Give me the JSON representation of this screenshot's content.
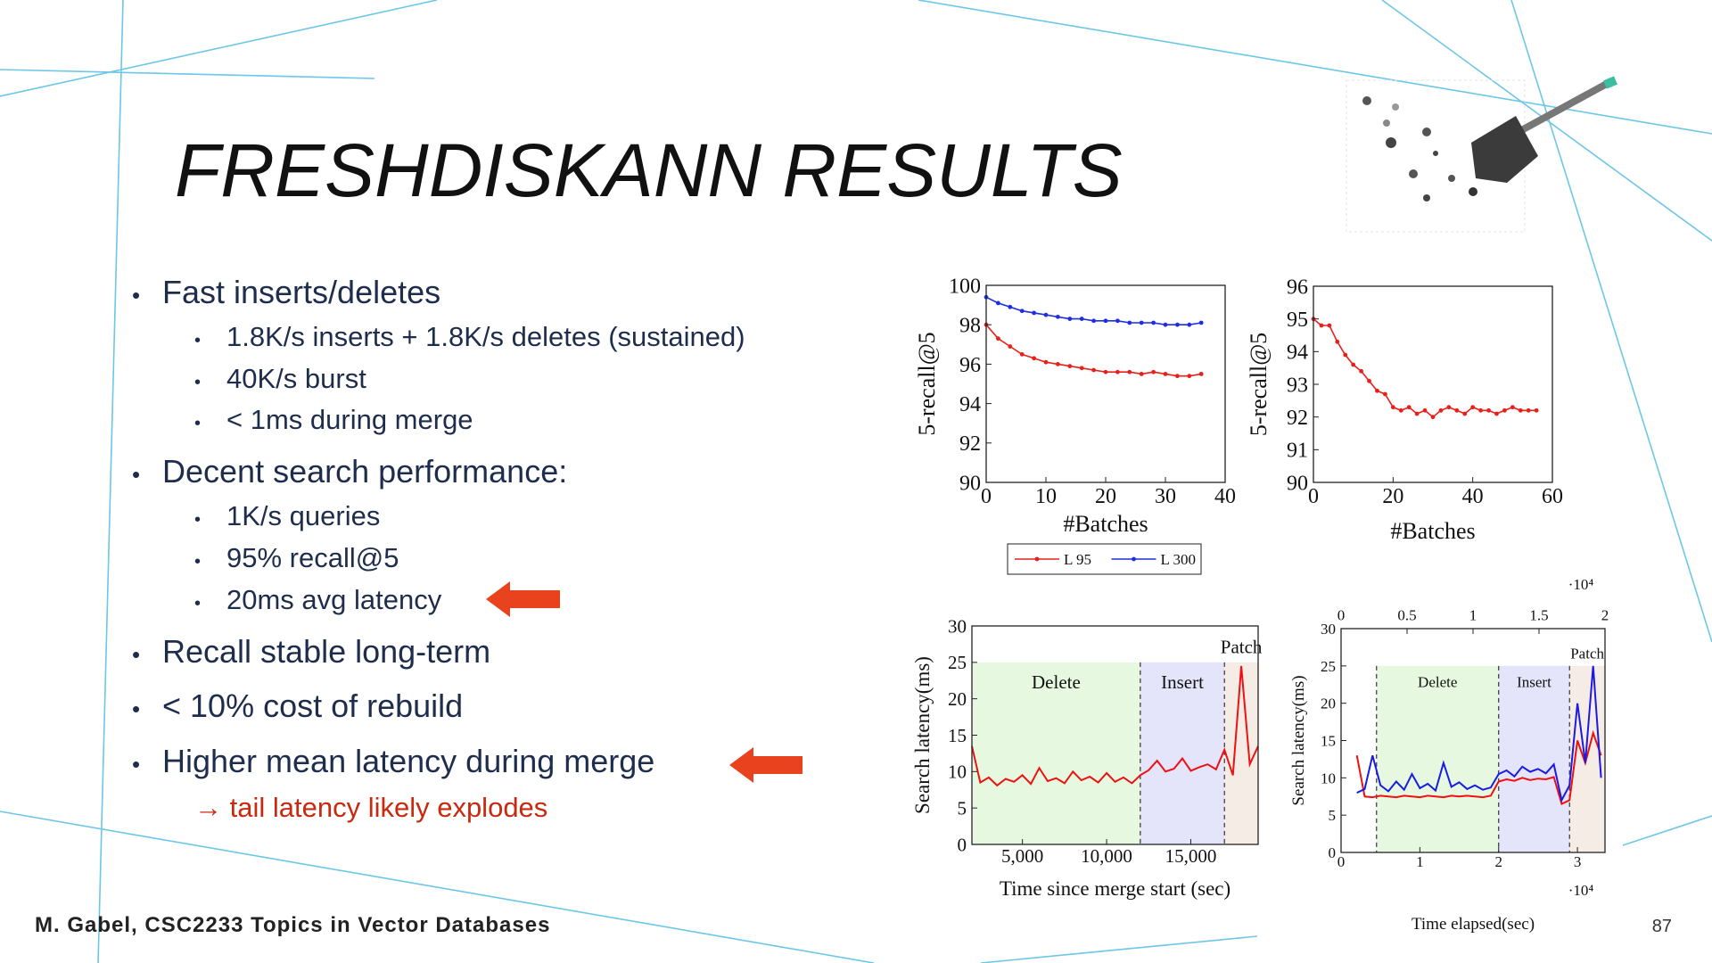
{
  "title": "FRESHDISKANN RESULTS",
  "bullets": [
    {
      "text": "Fast inserts/deletes",
      "sub": [
        "1.8K/s inserts + 1.8K/s deletes (sustained)",
        "40K/s burst",
        "< 1ms during merge"
      ]
    },
    {
      "text": "Decent search performance:",
      "sub": [
        "1K/s queries",
        "95% recall@5",
        "20ms avg latency"
      ]
    },
    {
      "text": "Recall stable long-term"
    },
    {
      "text": "< 10% cost of rebuild"
    },
    {
      "text": "Higher mean latency during merge",
      "note": "→ tail latency likely explodes"
    }
  ],
  "footer": "M. Gabel, CSC2233 Topics in Vector Databases",
  "page_number": "87",
  "chart_data": [
    {
      "type": "line",
      "x_label": "#Batches",
      "y_label": "5-recall@5",
      "markers": true,
      "legend": "below",
      "xlim": [
        0,
        40
      ],
      "xticks": [
        0,
        10,
        20,
        30,
        40
      ],
      "ylim": [
        90,
        100
      ],
      "yticks": [
        90,
        92,
        94,
        96,
        98,
        100
      ],
      "x": [
        0,
        2,
        4,
        6,
        8,
        10,
        12,
        14,
        16,
        18,
        20,
        22,
        24,
        26,
        28,
        30,
        32,
        34,
        36
      ],
      "series": [
        {
          "name": "L 95",
          "color": "#e8201a",
          "values": [
            98.0,
            97.3,
            96.9,
            96.5,
            96.3,
            96.1,
            96.0,
            95.9,
            95.8,
            95.7,
            95.6,
            95.6,
            95.6,
            95.5,
            95.6,
            95.5,
            95.4,
            95.4,
            95.5
          ]
        },
        {
          "name": "L 300",
          "color": "#1f2ee0",
          "values": [
            99.4,
            99.1,
            98.9,
            98.7,
            98.6,
            98.5,
            98.4,
            98.3,
            98.3,
            98.2,
            98.2,
            98.2,
            98.1,
            98.1,
            98.1,
            98.0,
            98.0,
            98.0,
            98.1
          ]
        }
      ]
    },
    {
      "type": "line",
      "x_label": "#Batches",
      "y_label": "5-recall@5",
      "markers": true,
      "xlim": [
        0,
        60
      ],
      "xticks": [
        0,
        20,
        40,
        60
      ],
      "ylim": [
        90,
        96
      ],
      "yticks": [
        90,
        91,
        92,
        93,
        94,
        95,
        96
      ],
      "x": [
        0,
        2,
        4,
        6,
        8,
        10,
        12,
        14,
        16,
        18,
        20,
        22,
        24,
        26,
        28,
        30,
        32,
        34,
        36,
        38,
        40,
        42,
        44,
        46,
        48,
        50,
        52,
        54,
        56
      ],
      "series": [
        {
          "color": "#e8201a",
          "values": [
            95.0,
            94.8,
            94.8,
            94.3,
            93.9,
            93.6,
            93.4,
            93.1,
            92.8,
            92.7,
            92.3,
            92.2,
            92.3,
            92.1,
            92.2,
            92.0,
            92.2,
            92.3,
            92.2,
            92.1,
            92.3,
            92.2,
            92.2,
            92.1,
            92.2,
            92.3,
            92.2,
            92.2,
            92.2
          ]
        }
      ]
    },
    {
      "type": "line",
      "x_label": "Time since merge start (sec)",
      "y_label": "Search latency(ms)",
      "markers": false,
      "xlim": [
        2000,
        19000
      ],
      "xticks": [
        {
          "value": 5000,
          "label": "5,000"
        },
        {
          "value": 10000,
          "label": "10,000"
        },
        {
          "value": 15000,
          "label": "15,000"
        }
      ],
      "ylim": [
        0,
        30
      ],
      "yticks": [
        0,
        5,
        10,
        15,
        20,
        25,
        30
      ],
      "region_top": 25,
      "regions": [
        {
          "label": "Delete",
          "start": 2000,
          "end": 12000,
          "color": "#e6f9e0"
        },
        {
          "label": "Insert",
          "start": 12000,
          "end": 17000,
          "color": "#e4e4fb"
        },
        {
          "label": "Patch",
          "start": 17000,
          "end": 19000,
          "color": "#f6ece6"
        }
      ],
      "x": [
        2000,
        2500,
        3000,
        3500,
        4000,
        4500,
        5000,
        5500,
        6000,
        6500,
        7000,
        7500,
        8000,
        8500,
        9000,
        9500,
        10000,
        10500,
        11000,
        11500,
        12000,
        12500,
        13000,
        13500,
        14000,
        14500,
        15000,
        15500,
        16000,
        16500,
        17000,
        17500,
        18000,
        18500,
        19000
      ],
      "series": [
        {
          "color": "#ee1111",
          "values": [
            13.5,
            8.5,
            9.2,
            8.1,
            9.0,
            8.6,
            9.5,
            8.3,
            10.5,
            8.7,
            9.1,
            8.4,
            10.0,
            8.8,
            9.3,
            8.5,
            9.8,
            8.6,
            9.2,
            8.4,
            9.5,
            10.2,
            11.5,
            10.0,
            10.4,
            11.8,
            10.1,
            10.6,
            11.0,
            10.3,
            13.0,
            9.5,
            24.5,
            11.0,
            13.5
          ]
        }
      ]
    },
    {
      "type": "line",
      "x_label": "Time elapsed(sec)",
      "y_label": "Search latency(ms)",
      "markers": false,
      "x_exponent": "·10⁴",
      "x2_exponent": "·10⁴",
      "xlim": [
        0,
        3.35
      ],
      "xticks": [
        0,
        1,
        2,
        3
      ],
      "x2lim": [
        0,
        2
      ],
      "x2ticks": [
        0,
        0.5,
        1,
        1.5,
        2
      ],
      "ylim": [
        0,
        30
      ],
      "yticks": [
        0,
        5,
        10,
        15,
        20,
        25,
        30
      ],
      "region_top": 25,
      "regions": [
        {
          "label": "Delete",
          "start": 0.45,
          "end": 2.0,
          "color": "#e6f9e0"
        },
        {
          "label": "Insert",
          "start": 2.0,
          "end": 2.9,
          "color": "#e4e4fb"
        },
        {
          "label": "Patch",
          "start": 2.9,
          "end": 3.35,
          "color": "#f6ece6"
        }
      ],
      "x": [
        0.2,
        0.3,
        0.4,
        0.5,
        0.6,
        0.7,
        0.8,
        0.9,
        1.0,
        1.1,
        1.2,
        1.3,
        1.4,
        1.5,
        1.6,
        1.7,
        1.8,
        1.9,
        2.0,
        2.1,
        2.2,
        2.3,
        2.4,
        2.5,
        2.6,
        2.7,
        2.8,
        2.9,
        3.0,
        3.1,
        3.2,
        3.3
      ],
      "series": [
        {
          "color": "#ee1111",
          "values": [
            13.0,
            7.5,
            7.4,
            7.6,
            7.5,
            7.4,
            7.6,
            7.5,
            7.4,
            7.6,
            7.5,
            7.4,
            7.6,
            7.5,
            7.6,
            7.5,
            7.4,
            7.6,
            9.5,
            9.8,
            9.6,
            10.0,
            9.7,
            9.9,
            9.8,
            10.1,
            6.5,
            7.0,
            15.0,
            12.0,
            16.0,
            13.0
          ]
        },
        {
          "color": "#1a1ae6",
          "values": [
            8.0,
            8.5,
            13.0,
            9.0,
            8.2,
            9.5,
            8.4,
            10.5,
            8.6,
            9.2,
            8.3,
            12.0,
            8.8,
            9.4,
            8.5,
            9.0,
            8.4,
            8.7,
            10.5,
            11.0,
            10.2,
            11.5,
            10.8,
            11.2,
            10.6,
            11.8,
            7.0,
            9.0,
            20.0,
            12.0,
            25.0,
            10.0
          ]
        }
      ]
    }
  ]
}
